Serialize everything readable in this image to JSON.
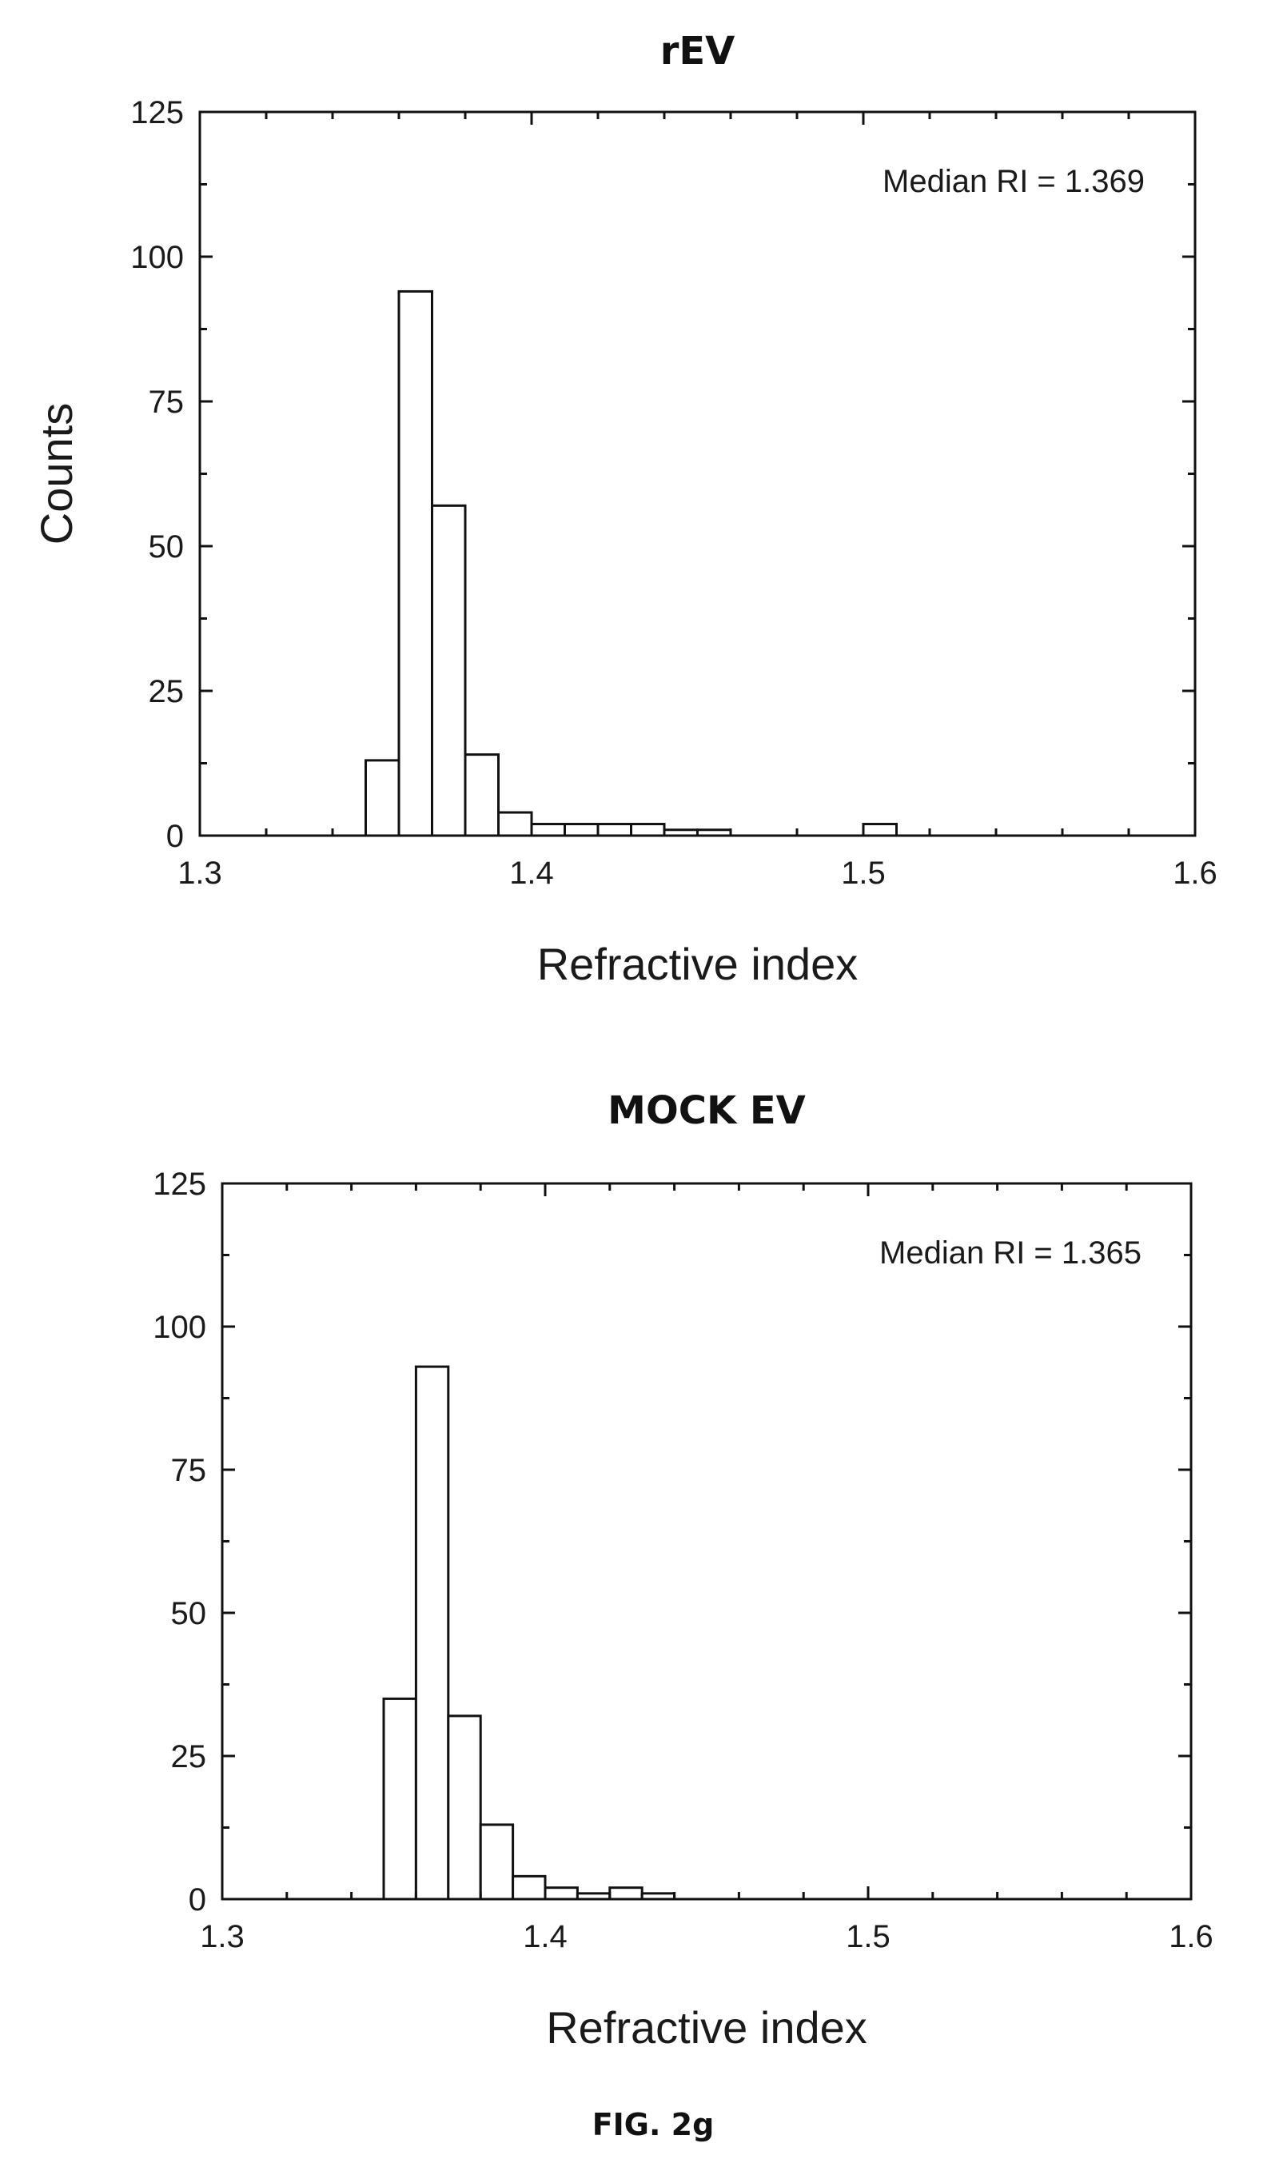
{
  "figure_caption": "FIG. 2g",
  "chart_data": [
    {
      "type": "bar",
      "title": "rEV",
      "xlabel": "Refractive index",
      "ylabel": "Counts",
      "xlim": [
        1.3,
        1.6
      ],
      "ylim": [
        0,
        125
      ],
      "xticks": [
        1.3,
        1.4,
        1.5,
        1.6
      ],
      "xtick_labels": [
        "1.3",
        "1.4",
        "1.5",
        "1.6"
      ],
      "yticks": [
        0,
        25,
        50,
        75,
        100,
        125
      ],
      "ytick_labels": [
        "0",
        "25",
        "50",
        "75",
        "100",
        "125"
      ],
      "annotation": "Median RI = 1.369",
      "grid": false,
      "bins": [
        {
          "x0": 1.35,
          "x1": 1.36,
          "count": 13
        },
        {
          "x0": 1.36,
          "x1": 1.37,
          "count": 94
        },
        {
          "x0": 1.37,
          "x1": 1.38,
          "count": 57
        },
        {
          "x0": 1.38,
          "x1": 1.39,
          "count": 14
        },
        {
          "x0": 1.39,
          "x1": 1.4,
          "count": 4
        },
        {
          "x0": 1.4,
          "x1": 1.41,
          "count": 2
        },
        {
          "x0": 1.41,
          "x1": 1.42,
          "count": 2
        },
        {
          "x0": 1.42,
          "x1": 1.43,
          "count": 2
        },
        {
          "x0": 1.43,
          "x1": 1.44,
          "count": 2
        },
        {
          "x0": 1.44,
          "x1": 1.45,
          "count": 1
        },
        {
          "x0": 1.45,
          "x1": 1.46,
          "count": 1
        },
        {
          "x0": 1.5,
          "x1": 1.51,
          "count": 2
        }
      ]
    },
    {
      "type": "bar",
      "title": "MOCK EV",
      "xlabel": "Refractive index",
      "ylabel": "",
      "xlim": [
        1.3,
        1.6
      ],
      "ylim": [
        0,
        125
      ],
      "xticks": [
        1.3,
        1.4,
        1.5,
        1.6
      ],
      "xtick_labels": [
        "1.3",
        "1.4",
        "1.5",
        "1.6"
      ],
      "yticks": [
        0,
        25,
        50,
        75,
        100,
        125
      ],
      "ytick_labels": [
        "0",
        "25",
        "50",
        "75",
        "100",
        "125"
      ],
      "annotation": "Median RI = 1.365",
      "grid": false,
      "bins": [
        {
          "x0": 1.35,
          "x1": 1.36,
          "count": 35
        },
        {
          "x0": 1.36,
          "x1": 1.37,
          "count": 93
        },
        {
          "x0": 1.37,
          "x1": 1.38,
          "count": 32
        },
        {
          "x0": 1.38,
          "x1": 1.39,
          "count": 13
        },
        {
          "x0": 1.39,
          "x1": 1.4,
          "count": 4
        },
        {
          "x0": 1.4,
          "x1": 1.41,
          "count": 2
        },
        {
          "x0": 1.41,
          "x1": 1.42,
          "count": 1
        },
        {
          "x0": 1.42,
          "x1": 1.43,
          "count": 2
        },
        {
          "x0": 1.43,
          "x1": 1.44,
          "count": 1
        }
      ]
    }
  ]
}
